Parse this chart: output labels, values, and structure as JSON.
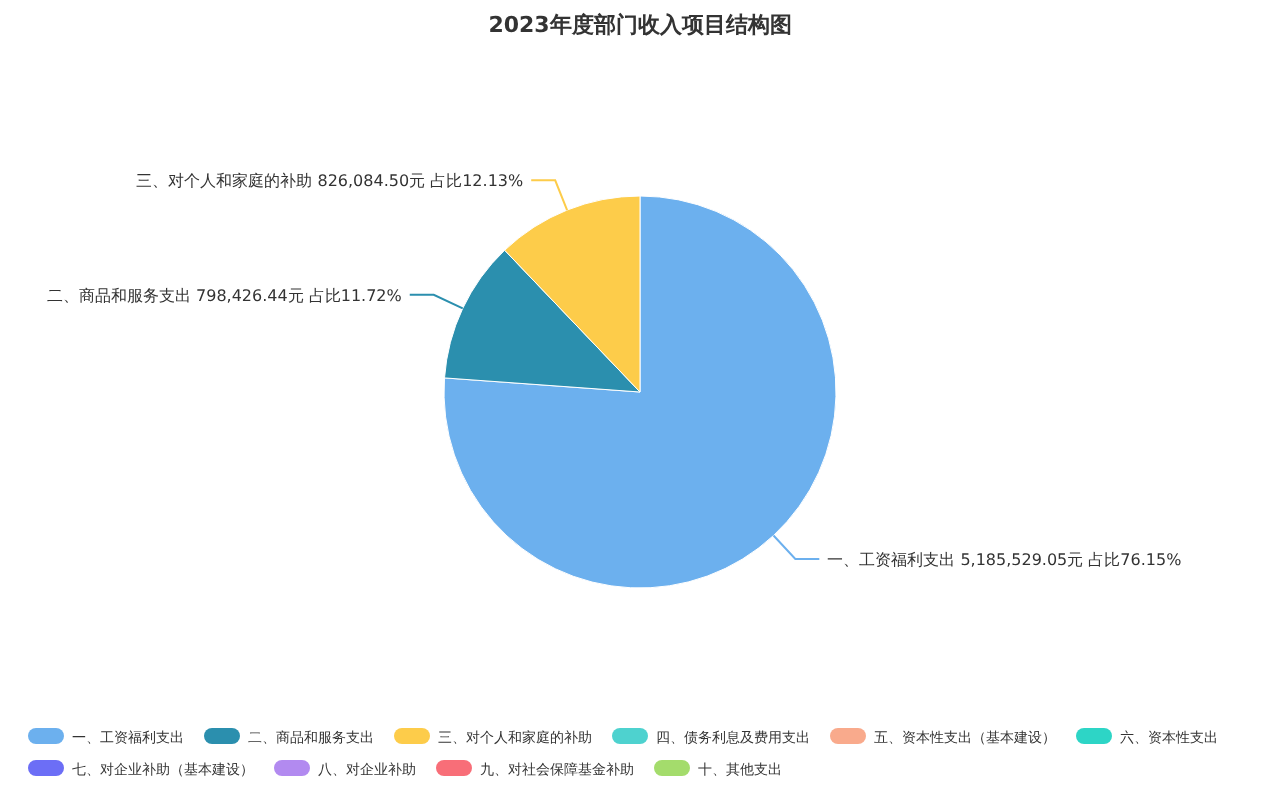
{
  "chart_data": {
    "type": "pie",
    "title": "2023年度部门收入项目结构图",
    "categories": [
      "一、工资福利支出",
      "二、商品和服务支出",
      "三、对个人和家庭的补助",
      "四、债务利息及费用支出",
      "五、资本性支出（基本建设）",
      "六、资本性支出",
      "七、对企业补助（基本建设）",
      "八、对企业补助",
      "九、对社会保障基金补助",
      "十、其他支出"
    ],
    "values": [
      5185529.05,
      798426.44,
      826084.5,
      0,
      0,
      0,
      0,
      0,
      0,
      0
    ],
    "colors": [
      "#6cb0ee",
      "#2b8fae",
      "#fdcc4a",
      "#4ed2cf",
      "#f9aa8c",
      "#2dd5c6",
      "#6c6ef6",
      "#b28af0",
      "#f86e78",
      "#a4dc6c"
    ],
    "value_labels": [
      "一、工资福利支出 5,185,529.05元 占比76.15%",
      "二、商品和服务支出 798,426.44元 占比11.72%",
      "三、对个人和家庭的补助 826,084.50元 占比12.13%",
      null,
      null,
      null,
      null,
      null,
      null,
      null
    ],
    "legend": "bottom"
  }
}
